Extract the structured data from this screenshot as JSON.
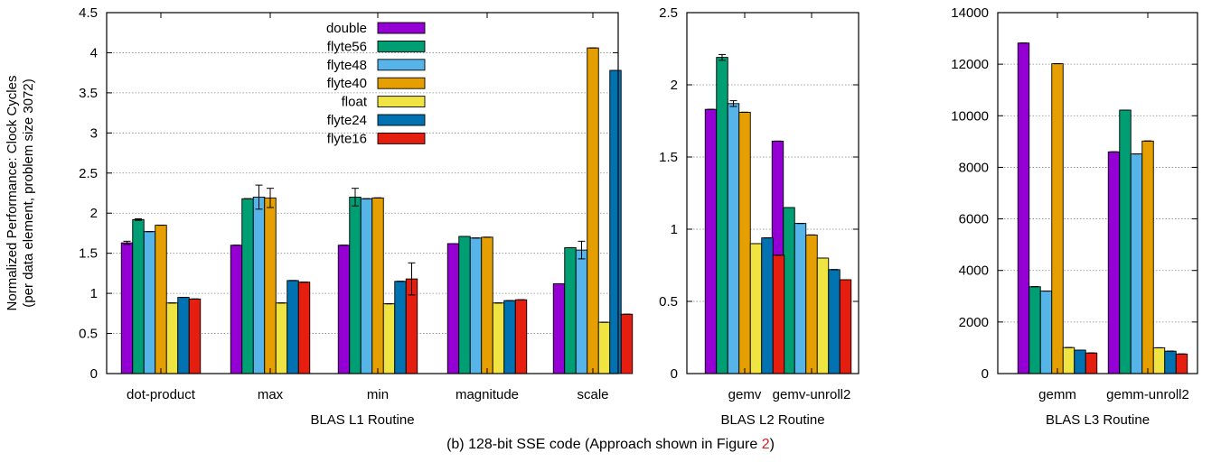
{
  "caption": {
    "before": "(b) 128-bit SSE code (Approach shown in Figure ",
    "ref": "2",
    "after": ")"
  },
  "y_axis_label": {
    "line1": "Normalized Performance: Clock Cycles",
    "line2": "(per data element, problem size 3072)"
  },
  "series_order": [
    "double",
    "flyte56",
    "flyte48",
    "flyte40",
    "float",
    "flyte24",
    "flyte16"
  ],
  "colors": {
    "double": "#9400d3",
    "flyte56": "#009e73",
    "flyte48": "#56b4e9",
    "flyte40": "#e69f00",
    "float": "#f0e442",
    "flyte24": "#0072b2",
    "flyte16": "#e51e10"
  },
  "chart_data": [
    {
      "type": "bar",
      "xlabel": "BLAS L1 Routine",
      "ylabel": "",
      "ylim": [
        0,
        4.5
      ],
      "yticks": [
        0,
        0.5,
        1,
        1.5,
        2,
        2.5,
        3,
        3.5,
        4,
        4.5
      ],
      "ytick_labels": [
        "0",
        "0.5",
        "1",
        "1.5",
        "2",
        "2.5",
        "3",
        "3.5",
        "4",
        "4.5"
      ],
      "grid": true,
      "legend": "top-center",
      "categories": [
        "dot-product",
        "max",
        "min",
        "magnitude",
        "scale"
      ],
      "series": [
        {
          "name": "double",
          "values": [
            1.63,
            1.6,
            1.6,
            1.62,
            1.12
          ],
          "err": [
            0.02,
            0,
            0,
            0,
            0
          ]
        },
        {
          "name": "flyte56",
          "values": [
            1.92,
            2.18,
            2.2,
            1.71,
            1.57
          ],
          "err": [
            0.01,
            0,
            0.11,
            0,
            0
          ]
        },
        {
          "name": "flyte48",
          "values": [
            1.77,
            2.2,
            2.18,
            1.69,
            1.54
          ],
          "err": [
            0,
            0.15,
            0,
            0,
            0.11
          ]
        },
        {
          "name": "flyte40",
          "values": [
            1.85,
            2.19,
            2.19,
            1.7,
            4.06
          ],
          "err": [
            0,
            0.12,
            0,
            0,
            0
          ]
        },
        {
          "name": "float",
          "values": [
            0.88,
            0.88,
            0.87,
            0.88,
            0.64
          ],
          "err": [
            0,
            0,
            0,
            0,
            0
          ]
        },
        {
          "name": "flyte24",
          "values": [
            0.95,
            1.16,
            1.15,
            0.91,
            3.78
          ],
          "err": [
            0,
            0,
            0,
            0,
            0
          ]
        },
        {
          "name": "flyte16",
          "values": [
            0.93,
            1.14,
            1.18,
            0.92,
            0.74
          ],
          "err": [
            0,
            0,
            0.2,
            0,
            0
          ]
        }
      ]
    },
    {
      "type": "bar",
      "xlabel": "BLAS L2 Routine",
      "ylabel": "",
      "ylim": [
        0,
        2.5
      ],
      "yticks": [
        0,
        0.5,
        1,
        1.5,
        2,
        2.5
      ],
      "ytick_labels": [
        "0",
        "0.5",
        "1",
        "1.5",
        "2",
        "2.5"
      ],
      "grid": true,
      "categories": [
        "gemv",
        "gemv-unroll2"
      ],
      "series": [
        {
          "name": "double",
          "values": [
            1.83,
            1.61
          ],
          "err": [
            0,
            0
          ]
        },
        {
          "name": "flyte56",
          "values": [
            2.19,
            1.15
          ],
          "err": [
            0.02,
            0
          ]
        },
        {
          "name": "flyte48",
          "values": [
            1.87,
            1.04
          ],
          "err": [
            0.02,
            0
          ]
        },
        {
          "name": "flyte40",
          "values": [
            1.81,
            0.96
          ],
          "err": [
            0,
            0
          ]
        },
        {
          "name": "float",
          "values": [
            0.9,
            0.8
          ],
          "err": [
            0,
            0
          ]
        },
        {
          "name": "flyte24",
          "values": [
            0.94,
            0.72
          ],
          "err": [
            0,
            0
          ]
        },
        {
          "name": "flyte16",
          "values": [
            0.82,
            0.65
          ],
          "err": [
            0,
            0
          ]
        }
      ]
    },
    {
      "type": "bar",
      "xlabel": "BLAS L3 Routine",
      "ylabel": "",
      "ylim": [
        0,
        14000
      ],
      "yticks": [
        0,
        2000,
        4000,
        6000,
        8000,
        10000,
        12000,
        14000
      ],
      "ytick_labels": [
        "0",
        "2000",
        "4000",
        "6000",
        "8000",
        "10000",
        "12000",
        "14000"
      ],
      "grid": true,
      "categories": [
        "gemm",
        "gemm-unroll2"
      ],
      "series": [
        {
          "name": "double",
          "values": [
            12820,
            8600
          ],
          "err": [
            0,
            0
          ]
        },
        {
          "name": "flyte56",
          "values": [
            3370,
            10220
          ],
          "err": [
            0,
            0
          ]
        },
        {
          "name": "flyte48",
          "values": [
            3200,
            8520
          ],
          "err": [
            0,
            0
          ]
        },
        {
          "name": "flyte40",
          "values": [
            12020,
            9020
          ],
          "err": [
            0,
            0
          ]
        },
        {
          "name": "float",
          "values": [
            1010,
            1000
          ],
          "err": [
            0,
            0
          ]
        },
        {
          "name": "flyte24",
          "values": [
            910,
            870
          ],
          "err": [
            0,
            0
          ]
        },
        {
          "name": "flyte16",
          "values": [
            800,
            760
          ],
          "err": [
            0,
            0
          ]
        }
      ]
    }
  ]
}
